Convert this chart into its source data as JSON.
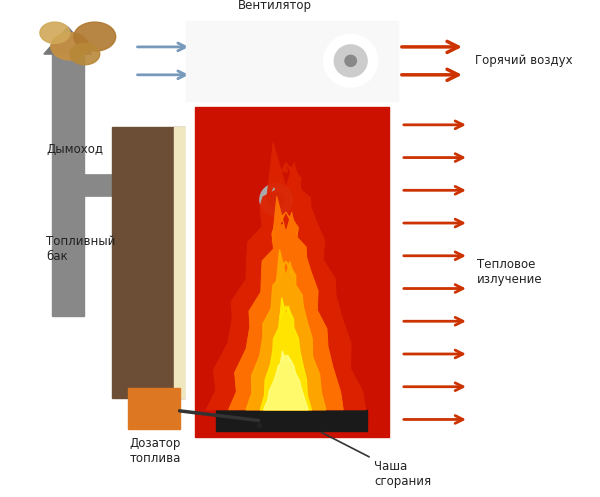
{
  "bg_color": "#ffffff",
  "boiler_body_color": "#cc1100",
  "chimney_color": "#888888",
  "tank_color": "#6b4e35",
  "arrow_color": "#cc3300",
  "cool_arrow_color": "#7799bb",
  "fan_box_color": "#f8f8f8",
  "doser_color": "#dd7722",
  "cup_color": "#1a1a1a",
  "labels": {
    "fan": "Вентилятор",
    "hot_air": "Горячий воздух",
    "chimney": "Дымоход",
    "tank": "Топливный\nбак",
    "radiation": "Тепловое\nизлучение",
    "doser": "Дозатор\nтоплива",
    "cup": "Чаша\nсгорания"
  }
}
